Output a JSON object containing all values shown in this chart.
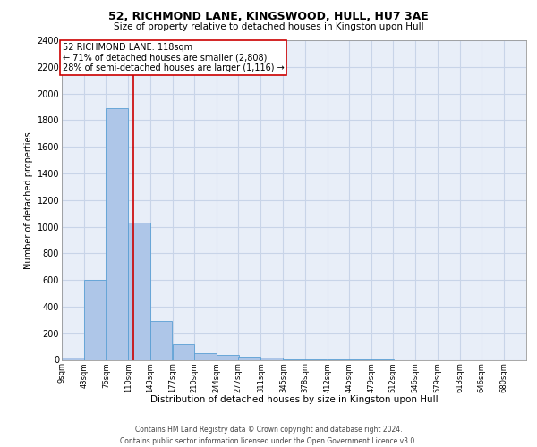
{
  "title": "52, RICHMOND LANE, KINGSWOOD, HULL, HU7 3AE",
  "subtitle": "Size of property relative to detached houses in Kingston upon Hull",
  "xlabel": "Distribution of detached houses by size in Kingston upon Hull",
  "ylabel": "Number of detached properties",
  "footer_line1": "Contains HM Land Registry data © Crown copyright and database right 2024.",
  "footer_line2": "Contains public sector information licensed under the Open Government Licence v3.0.",
  "annotation_line1": "52 RICHMOND LANE: 118sqm",
  "annotation_line2": "← 71% of detached houses are smaller (2,808)",
  "annotation_line3": "28% of semi-detached houses are larger (1,116) →",
  "bar_color": "#aec6e8",
  "bar_edge_color": "#5a9fd4",
  "grid_color": "#c8d4e8",
  "background_color": "#e8eef8",
  "marker_line_color": "#cc0000",
  "marker_value": 118,
  "categories": [
    "9sqm",
    "43sqm",
    "76sqm",
    "110sqm",
    "143sqm",
    "177sqm",
    "210sqm",
    "244sqm",
    "277sqm",
    "311sqm",
    "345sqm",
    "378sqm",
    "412sqm",
    "445sqm",
    "479sqm",
    "512sqm",
    "546sqm",
    "579sqm",
    "613sqm",
    "646sqm",
    "680sqm"
  ],
  "bin_edges": [
    9,
    43,
    76,
    110,
    143,
    177,
    210,
    244,
    277,
    311,
    345,
    378,
    412,
    445,
    479,
    512,
    546,
    579,
    613,
    646,
    680
  ],
  "bin_width": 34,
  "values": [
    20,
    600,
    1890,
    1030,
    290,
    120,
    50,
    40,
    25,
    15,
    5,
    2,
    2,
    1,
    1,
    0,
    0,
    0,
    0,
    0,
    0
  ],
  "ylim": [
    0,
    2400
  ],
  "yticks": [
    0,
    200,
    400,
    600,
    800,
    1000,
    1200,
    1400,
    1600,
    1800,
    2000,
    2200,
    2400
  ],
  "title_fontsize": 9,
  "subtitle_fontsize": 7.5,
  "ylabel_fontsize": 7,
  "ytick_fontsize": 7,
  "xtick_fontsize": 6,
  "xlabel_fontsize": 7.5,
  "footer_fontsize": 5.5,
  "annotation_fontsize": 7
}
